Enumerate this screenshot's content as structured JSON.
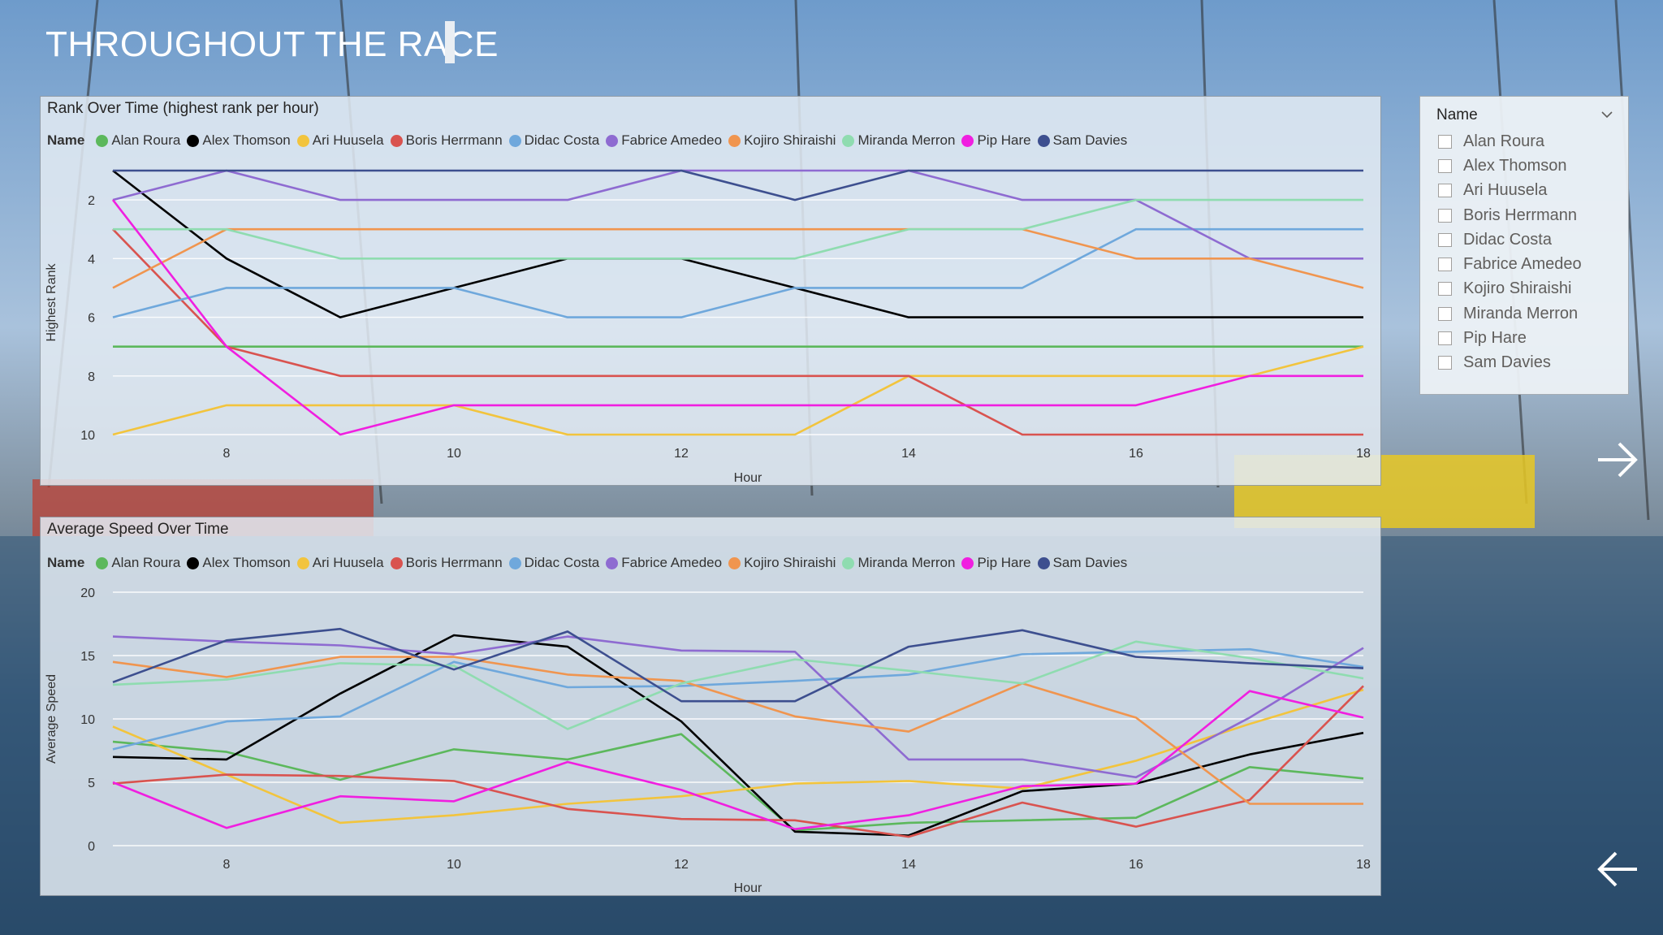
{
  "page": {
    "title": "THROUGHOUT THE RACE"
  },
  "legend_label": "Name",
  "series_names": [
    "Alan Roura",
    "Alex Thomson",
    "Ari Huusela",
    "Boris Herrmann",
    "Didac Costa",
    "Fabrice Amedeo",
    "Kojiro Shiraishi",
    "Miranda Merron",
    "Pip Hare",
    "Sam Davies"
  ],
  "colors": {
    "Alan Roura": "#5cb85c",
    "Alex Thomson": "#000000",
    "Ari Huusela": "#f2c43d",
    "Boris Herrmann": "#d9534f",
    "Didac Costa": "#6fa8dc",
    "Fabrice Amedeo": "#8e6bd1",
    "Kojiro Shiraishi": "#f0954f",
    "Miranda Merron": "#8fdcb0",
    "Pip Hare": "#f01fe0",
    "Sam Davies": "#3d4f8f"
  },
  "slicer": {
    "header": "Name",
    "items": [
      "Alan Roura",
      "Alex Thomson",
      "Ari Huusela",
      "Boris Herrmann",
      "Didac Costa",
      "Fabrice Amedeo",
      "Kojiro Shiraishi",
      "Miranda Merron",
      "Pip Hare",
      "Sam Davies"
    ]
  },
  "icons": {
    "next": "arrow-right-icon",
    "back": "arrow-left-icon",
    "dropdown": "chevron-down-icon"
  },
  "chart_data": [
    {
      "type": "line",
      "title": "Rank Over Time (highest rank per hour)",
      "xlabel": "Hour",
      "ylabel": "Highest Rank",
      "x": [
        7,
        8,
        9,
        10,
        11,
        12,
        13,
        14,
        15,
        16,
        17,
        18
      ],
      "x_ticks": [
        "8",
        "10",
        "12",
        "14",
        "16",
        "18"
      ],
      "y_ticks": [
        "2",
        "4",
        "6",
        "8",
        "10"
      ],
      "ylim": [
        1,
        10
      ],
      "y_reversed": true,
      "legend_position": "top-left",
      "grid": true,
      "series": [
        {
          "name": "Alan Roura",
          "values": [
            7,
            7,
            7,
            7,
            7,
            7,
            7,
            7,
            7,
            7,
            7,
            7
          ]
        },
        {
          "name": "Alex Thomson",
          "values": [
            1,
            4,
            6,
            5,
            4,
            4,
            5,
            6,
            6,
            6,
            6,
            6
          ]
        },
        {
          "name": "Ari Huusela",
          "values": [
            10,
            9,
            9,
            9,
            10,
            10,
            10,
            8,
            8,
            8,
            8,
            7
          ]
        },
        {
          "name": "Boris Herrmann",
          "values": [
            3,
            7,
            8,
            8,
            8,
            8,
            8,
            8,
            10,
            10,
            10,
            10
          ]
        },
        {
          "name": "Didac Costa",
          "values": [
            6,
            5,
            5,
            5,
            6,
            6,
            5,
            5,
            5,
            3,
            3,
            3
          ]
        },
        {
          "name": "Fabrice Amedeo",
          "values": [
            2,
            1,
            2,
            2,
            2,
            1,
            1,
            1,
            2,
            2,
            4,
            4
          ]
        },
        {
          "name": "Kojiro Shiraishi",
          "values": [
            5,
            3,
            3,
            3,
            3,
            3,
            3,
            3,
            3,
            4,
            4,
            5
          ]
        },
        {
          "name": "Miranda Merron",
          "values": [
            3,
            3,
            4,
            4,
            4,
            4,
            4,
            3,
            3,
            2,
            2,
            2
          ]
        },
        {
          "name": "Pip Hare",
          "values": [
            2,
            7,
            10,
            9,
            9,
            9,
            9,
            9,
            9,
            9,
            8,
            8
          ]
        },
        {
          "name": "Sam Davies",
          "values": [
            1,
            1,
            1,
            1,
            1,
            1,
            2,
            1,
            1,
            1,
            1,
            1
          ]
        }
      ]
    },
    {
      "type": "line",
      "title": "Average Speed Over Time",
      "xlabel": "Hour",
      "ylabel": "Average Speed",
      "x": [
        7,
        8,
        9,
        10,
        11,
        12,
        13,
        14,
        15,
        16,
        17,
        18
      ],
      "x_ticks": [
        "8",
        "10",
        "12",
        "14",
        "16",
        "18"
      ],
      "y_ticks": [
        "0",
        "5",
        "10",
        "15",
        "20"
      ],
      "ylim": [
        0,
        20
      ],
      "legend_position": "top-left",
      "grid": true,
      "series": [
        {
          "name": "Alan Roura",
          "values": [
            8.2,
            7.4,
            5.2,
            7.6,
            6.8,
            8.8,
            1.2,
            1.8,
            2.0,
            2.2,
            6.2,
            5.3
          ]
        },
        {
          "name": "Alex Thomson",
          "values": [
            7.0,
            6.8,
            12.0,
            16.6,
            15.7,
            9.8,
            1.1,
            0.8,
            4.3,
            4.9,
            7.2,
            8.9
          ]
        },
        {
          "name": "Ari Huusela",
          "values": [
            9.4,
            5.6,
            1.8,
            2.4,
            3.3,
            3.9,
            4.9,
            5.1,
            4.5,
            6.7,
            9.6,
            12.3
          ]
        },
        {
          "name": "Boris Herrmann",
          "values": [
            4.9,
            5.6,
            5.5,
            5.1,
            2.9,
            2.1,
            2.0,
            0.7,
            3.4,
            1.5,
            3.6,
            12.6
          ]
        },
        {
          "name": "Didac Costa",
          "values": [
            7.6,
            9.8,
            10.2,
            14.5,
            12.5,
            12.6,
            13.0,
            13.5,
            15.1,
            15.3,
            15.5,
            14.1
          ]
        },
        {
          "name": "Fabrice Amedeo",
          "values": [
            16.5,
            16.1,
            15.8,
            15.1,
            16.5,
            15.4,
            15.3,
            6.8,
            6.8,
            5.4,
            10.1,
            15.6
          ]
        },
        {
          "name": "Kojiro Shiraishi",
          "values": [
            14.5,
            13.3,
            14.9,
            14.9,
            13.5,
            13.0,
            10.2,
            9.0,
            12.8,
            10.1,
            3.3,
            3.3
          ]
        },
        {
          "name": "Miranda Merron",
          "values": [
            12.7,
            13.1,
            14.4,
            14.2,
            9.2,
            12.8,
            14.7,
            13.8,
            12.8,
            16.1,
            14.8,
            13.2
          ]
        },
        {
          "name": "Pip Hare",
          "values": [
            5.0,
            1.4,
            3.9,
            3.5,
            6.6,
            4.4,
            1.3,
            2.4,
            4.7,
            4.9,
            12.2,
            10.1
          ]
        },
        {
          "name": "Sam Davies",
          "values": [
            12.9,
            16.2,
            17.1,
            13.9,
            16.9,
            11.4,
            11.4,
            15.7,
            17.0,
            14.9,
            14.4,
            14.0
          ]
        }
      ]
    }
  ]
}
